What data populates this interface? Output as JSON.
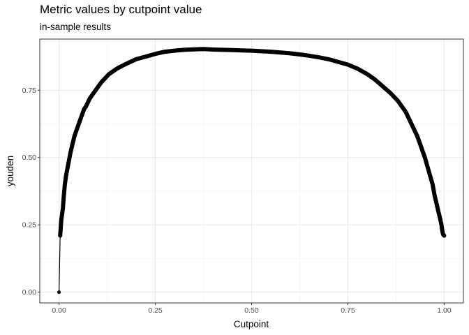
{
  "chart_data": {
    "type": "line",
    "title": "Metric values by cutpoint value",
    "subtitle": "in-sample results",
    "xlabel": "Cutpoint",
    "ylabel": "youden",
    "xlim": [
      -0.05,
      1.05
    ],
    "ylim": [
      -0.04,
      0.94
    ],
    "x_ticks": [
      0.0,
      0.25,
      0.5,
      0.75,
      1.0
    ],
    "x_tick_labels": [
      "0.00",
      "0.25",
      "0.50",
      "0.75",
      "1.00"
    ],
    "y_ticks": [
      0.0,
      0.25,
      0.5,
      0.75
    ],
    "y_tick_labels": [
      "0.00",
      "0.25",
      "0.50",
      "0.75"
    ],
    "grid": true,
    "series": [
      {
        "color": "#000000",
        "marker": "circle",
        "x": [
          0.0,
          0.003,
          0.004,
          0.005,
          0.006,
          0.008,
          0.01,
          0.012,
          0.015,
          0.018,
          0.022,
          0.026,
          0.03,
          0.035,
          0.04,
          0.045,
          0.05,
          0.055,
          0.06,
          0.065,
          0.07,
          0.08,
          0.09,
          0.1,
          0.11,
          0.12,
          0.13,
          0.15,
          0.17,
          0.2,
          0.225,
          0.25,
          0.275,
          0.3,
          0.325,
          0.35,
          0.375,
          0.4,
          0.425,
          0.45,
          0.475,
          0.5,
          0.525,
          0.55,
          0.575,
          0.6,
          0.625,
          0.65,
          0.675,
          0.7,
          0.725,
          0.75,
          0.775,
          0.8,
          0.82,
          0.84,
          0.86,
          0.88,
          0.9,
          0.92,
          0.93,
          0.94,
          0.95,
          0.96,
          0.97,
          0.975,
          0.98,
          0.985,
          0.99,
          0.993,
          0.995,
          0.997,
          1.0
        ],
        "y": [
          0.0,
          0.21,
          0.23,
          0.25,
          0.27,
          0.29,
          0.31,
          0.35,
          0.4,
          0.43,
          0.46,
          0.49,
          0.52,
          0.55,
          0.58,
          0.6,
          0.62,
          0.64,
          0.66,
          0.68,
          0.69,
          0.72,
          0.74,
          0.76,
          0.78,
          0.795,
          0.81,
          0.83,
          0.845,
          0.865,
          0.875,
          0.885,
          0.893,
          0.897,
          0.9,
          0.902,
          0.903,
          0.901,
          0.9,
          0.899,
          0.898,
          0.897,
          0.895,
          0.893,
          0.89,
          0.887,
          0.883,
          0.878,
          0.872,
          0.865,
          0.855,
          0.845,
          0.83,
          0.81,
          0.79,
          0.765,
          0.74,
          0.71,
          0.67,
          0.61,
          0.58,
          0.54,
          0.5,
          0.45,
          0.4,
          0.36,
          0.33,
          0.3,
          0.27,
          0.25,
          0.23,
          0.215,
          0.21
        ]
      }
    ]
  }
}
